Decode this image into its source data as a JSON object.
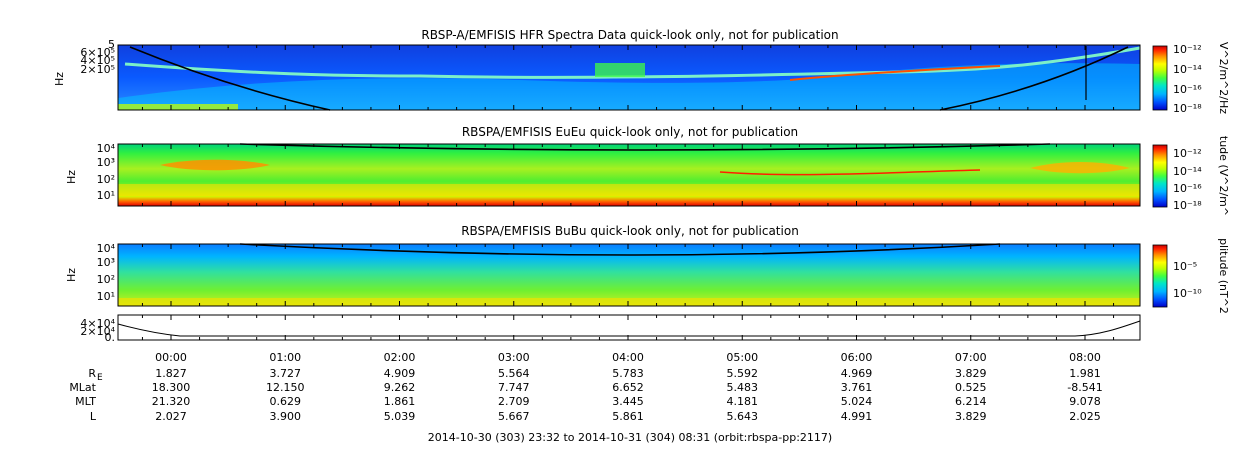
{
  "chart_data": [
    {
      "type": "heatmap",
      "title": "RBSP-A/EMFISIS  HFR Spectra Data quick-look only, not for publication",
      "ylabel": "Hz",
      "ytick_labels": [
        "6×10⁵",
        "4×10⁵",
        "2×10⁵"
      ],
      "yaxis_top_label": "5",
      "colorbar_label": "V^2/m^2/Hz",
      "colorbar_ticks": [
        "10⁻¹²",
        "10⁻¹⁴",
        "10⁻¹⁶",
        "10⁻¹⁸"
      ],
      "colorbar_range_exp": [
        -18,
        -12
      ],
      "scale": "log"
    },
    {
      "type": "heatmap",
      "title": "RBSPA/EMFISIS  EuEu quick-look only, not for publication",
      "ylabel": "Hz",
      "ytick_labels": [
        "10⁴",
        "10³",
        "10²",
        "10¹"
      ],
      "yaxis_exp_range": [
        0,
        4
      ],
      "colorbar_label": "tude (V^2/m^",
      "colorbar_ticks": [
        "10⁻¹²",
        "10⁻¹⁴",
        "10⁻¹⁶",
        "10⁻¹⁸"
      ],
      "colorbar_range_exp": [
        -18,
        -12
      ],
      "scale": "log"
    },
    {
      "type": "heatmap",
      "title": "RBSPA/EMFISIS  BuBu quick-look only, not for publication",
      "ylabel": "Hz",
      "ytick_labels": [
        "10⁴",
        "10³",
        "10²",
        "10¹"
      ],
      "yaxis_exp_range": [
        0,
        4
      ],
      "colorbar_label": "plitude (nT^2",
      "colorbar_ticks": [
        "10⁻⁵",
        "10⁻¹⁰"
      ],
      "scale": "log"
    },
    {
      "type": "line",
      "title": "",
      "ytick_labels": [
        "4×10⁴",
        "2×10⁴",
        "0."
      ],
      "ylim": [
        0,
        40000
      ]
    }
  ],
  "time_axis": {
    "labels": [
      "00:00",
      "01:00",
      "02:00",
      "03:00",
      "04:00",
      "05:00",
      "06:00",
      "07:00",
      "08:00"
    ],
    "rows": [
      {
        "name": "R",
        "sub": "E",
        "values": [
          "1.827",
          "3.727",
          "4.909",
          "5.564",
          "5.783",
          "5.592",
          "4.969",
          "3.829",
          "1.981"
        ]
      },
      {
        "name": "MLat",
        "values": [
          "18.300",
          "12.150",
          "9.262",
          "7.747",
          "6.652",
          "5.483",
          "3.761",
          "0.525",
          "-8.541"
        ]
      },
      {
        "name": "MLT",
        "values": [
          "21.320",
          "0.629",
          "1.861",
          "2.709",
          "3.445",
          "4.181",
          "5.024",
          "6.214",
          "9.078"
        ]
      },
      {
        "name": "L",
        "values": [
          "2.027",
          "3.900",
          "5.039",
          "5.667",
          "5.861",
          "5.643",
          "4.991",
          "3.829",
          "2.025"
        ]
      }
    ]
  },
  "footer": "2014-10-30 (303) 23:32 to 2014-10-31 (304) 08:31 (orbit:rbspa-pp:2117)",
  "colors": {
    "spectro_stops": [
      "#0000c8",
      "#0050ff",
      "#00b4ff",
      "#00e6c8",
      "#40ff40",
      "#c0ff00",
      "#ffff00",
      "#ff9000",
      "#ff2000",
      "#c80000"
    ]
  }
}
